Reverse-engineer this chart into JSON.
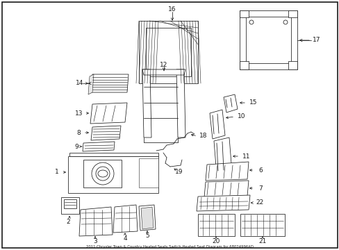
{
  "bg": "#ffffff",
  "fg": "#1a1a1a",
  "fig_w": 4.89,
  "fig_h": 3.6,
  "dpi": 100,
  "title": "2011 Chrysler Town & Country Heated Seats Switch-Heated Seat Diagram for 68024996AD",
  "border": true
}
